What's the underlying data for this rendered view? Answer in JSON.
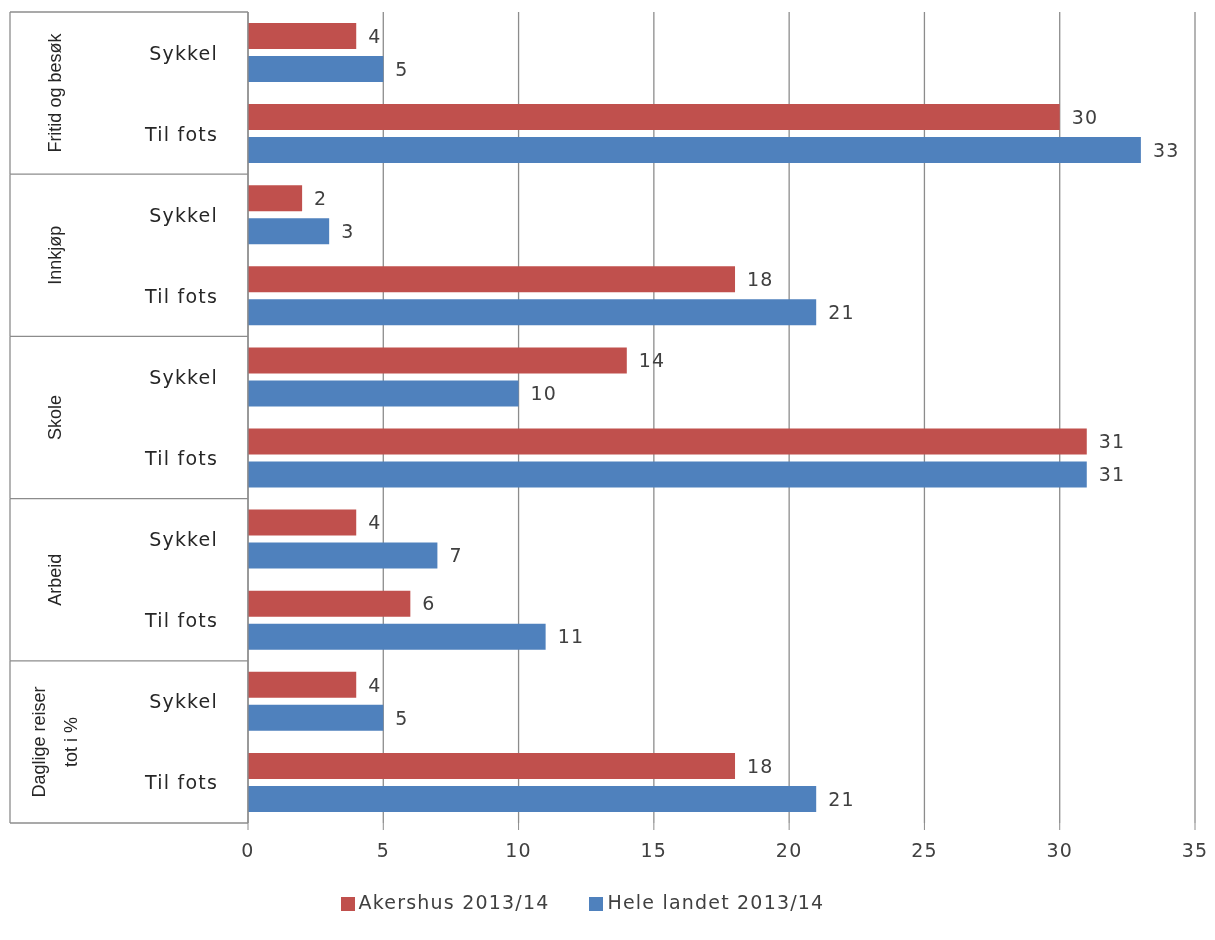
{
  "chart_data": {
    "type": "bar",
    "orientation": "horizontal",
    "categories": [
      "Sykkel",
      "Til fots",
      "Sykkel",
      "Til fots",
      "Sykkel",
      "Til fots",
      "Sykkel",
      "Til fots",
      "Sykkel",
      "Til fots"
    ],
    "annotations": [
      "Fritid og besøk",
      "Innkjøp",
      "Skole",
      "Arbeid",
      "Daglige reiser tot i %"
    ],
    "series": [
      {
        "name": "Akershus 2013/14",
        "color": "#c0504d",
        "values": [
          4,
          30,
          2,
          18,
          14,
          31,
          4,
          6,
          4,
          18
        ]
      },
      {
        "name": "Hele landet 2013/14",
        "color": "#4f81bd",
        "values": [
          5,
          33,
          3,
          21,
          10,
          31,
          7,
          11,
          5,
          21
        ]
      }
    ],
    "xlim": [
      0,
      35
    ],
    "xticks": [
      0,
      5,
      10,
      15,
      20,
      25,
      30,
      35
    ],
    "grid": "x",
    "legend": "bottom",
    "data_labels": true
  }
}
